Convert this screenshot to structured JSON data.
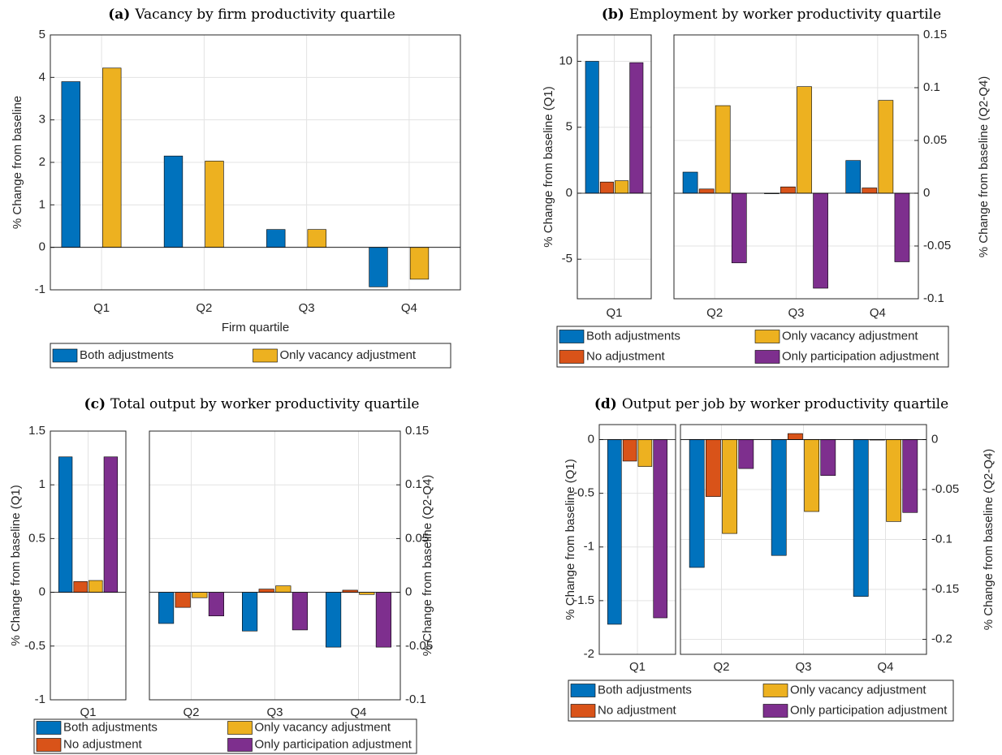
{
  "chart_data": [
    {
      "type": "bar",
      "label": "(a)",
      "title": "Vacancy by firm productivity quartile",
      "grid": true,
      "series": [
        {
          "name": "Both adjustments",
          "color": "#0072BD"
        },
        {
          "name": "Only vacancy adjustment",
          "color": "#EDB120"
        }
      ],
      "panels": [
        {
          "categories": [
            "Q1",
            "Q2",
            "Q3",
            "Q4"
          ],
          "xlabel": "Firm quartile",
          "ylabel": "% Change from baseline",
          "ylim": [
            -1,
            5
          ],
          "yticks": [
            -1,
            0,
            1,
            2,
            3,
            4,
            5
          ],
          "values": [
            [
              3.9,
              2.15,
              0.42,
              -0.93
            ],
            [
              4.22,
              2.03,
              0.42,
              -0.75
            ]
          ]
        }
      ]
    },
    {
      "type": "bar",
      "label": "(b)",
      "title": "Employment by worker productivity quartile",
      "grid": true,
      "series": [
        {
          "name": "Both adjustments",
          "color": "#0072BD"
        },
        {
          "name": "No adjustment",
          "color": "#D95319"
        },
        {
          "name": "Only vacancy adjustment",
          "color": "#EDB120"
        },
        {
          "name": "Only participation adjustment",
          "color": "#7E2F8E"
        }
      ],
      "panels": [
        {
          "categories": [
            "Q1"
          ],
          "ylabel": "% Change from baseline (Q1)",
          "ylim": [
            -8,
            12
          ],
          "yticks": [
            -5,
            0,
            5,
            10
          ],
          "values": [
            [
              10
            ],
            [
              0.85
            ],
            [
              0.95
            ],
            [
              9.9
            ]
          ]
        },
        {
          "categories": [
            "Q2",
            "Q3",
            "Q4"
          ],
          "y2label": "% Change from baseline (Q2-Q4)",
          "y2lim": [
            -0.1,
            0.15
          ],
          "y2ticks": [
            -0.1,
            -0.05,
            0,
            0.05,
            0.1,
            0.15
          ],
          "values": [
            [
              0.02,
              0,
              0.031
            ],
            [
              0.004,
              0.006,
              0.005
            ],
            [
              0.083,
              0.101,
              0.088
            ],
            [
              -0.066,
              -0.09,
              -0.065
            ]
          ]
        }
      ]
    },
    {
      "type": "bar",
      "label": "(c)",
      "title": "Total output by worker productivity quartile",
      "grid": true,
      "series": [
        {
          "name": "Both adjustments",
          "color": "#0072BD"
        },
        {
          "name": "No adjustment",
          "color": "#D95319"
        },
        {
          "name": "Only vacancy adjustment",
          "color": "#EDB120"
        },
        {
          "name": "Only participation adjustment",
          "color": "#7E2F8E"
        }
      ],
      "panels": [
        {
          "categories": [
            "Q1"
          ],
          "ylabel": "% Change from baseline (Q1)",
          "ylim": [
            -1,
            1.5
          ],
          "yticks": [
            -1,
            -0.5,
            0,
            0.5,
            1,
            1.5
          ],
          "values": [
            [
              1.26
            ],
            [
              0.1
            ],
            [
              0.11
            ],
            [
              1.26
            ]
          ]
        },
        {
          "categories": [
            "Q2",
            "Q3",
            "Q4"
          ],
          "y2label": "% Change from baseline (Q2-Q4)",
          "y2lim": [
            -0.1,
            0.15
          ],
          "y2ticks": [
            -0.1,
            -0.05,
            0,
            0.05,
            0.1,
            0.15
          ],
          "values": [
            [
              -0.029,
              -0.036,
              -0.051
            ],
            [
              -0.014,
              0.003,
              0.002
            ],
            [
              -0.005,
              0.006,
              -0.002
            ],
            [
              -0.022,
              -0.035,
              -0.051
            ]
          ]
        }
      ]
    },
    {
      "type": "bar",
      "label": "(d)",
      "title": "Output per job by worker productivity quartile",
      "grid": true,
      "series": [
        {
          "name": "Both adjustments",
          "color": "#0072BD"
        },
        {
          "name": "No adjustment",
          "color": "#D95319"
        },
        {
          "name": "Only vacancy adjustment",
          "color": "#EDB120"
        },
        {
          "name": "Only participation adjustment",
          "color": "#7E2F8E"
        }
      ],
      "panels": [
        {
          "categories": [
            "Q1"
          ],
          "ylabel": "% Change from baseline (Q1)",
          "ylim": [
            -2,
            0.14
          ],
          "yticks": [
            -2,
            -1.5,
            -1,
            -0.5,
            0
          ],
          "values": [
            [
              -1.72
            ],
            [
              -0.2
            ],
            [
              -0.25
            ],
            [
              -1.66
            ]
          ]
        },
        {
          "categories": [
            "Q2",
            "Q3",
            "Q4"
          ],
          "y2label": "% Change from baseline (Q2-Q4)",
          "y2lim": [
            -0.215,
            0.015
          ],
          "y2ticks": [
            -0.2,
            -0.15,
            -0.1,
            -0.05,
            0
          ],
          "values": [
            [
              -0.128,
              -0.116,
              -0.157
            ],
            [
              -0.057,
              0.006,
              0
            ],
            [
              -0.094,
              -0.072,
              -0.082
            ],
            [
              -0.029,
              -0.036,
              -0.073
            ]
          ]
        }
      ]
    }
  ]
}
